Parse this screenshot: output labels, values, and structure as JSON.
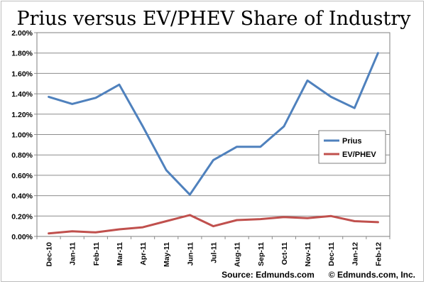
{
  "chart_data": {
    "type": "line",
    "title": "Prius versus EV/PHEV Share of Industry",
    "categories": [
      "Dec-10",
      "Jan-11",
      "Feb-11",
      "Mar-11",
      "Apr-11",
      "May-11",
      "Jun-11",
      "Jul-11",
      "Aug-11",
      "Sep-11",
      "Oct-11",
      "Nov-11",
      "Dec-11",
      "Jan-12",
      "Feb-12"
    ],
    "series": [
      {
        "name": "Prius",
        "color": "#4f81bd",
        "values": [
          1.37,
          1.3,
          1.36,
          1.49,
          1.08,
          0.65,
          0.41,
          0.75,
          0.88,
          0.88,
          1.08,
          1.53,
          1.37,
          1.26,
          1.8
        ]
      },
      {
        "name": "EV/PHEV",
        "color": "#c0504d",
        "values": [
          0.03,
          0.05,
          0.04,
          0.07,
          0.09,
          0.15,
          0.21,
          0.1,
          0.16,
          0.17,
          0.19,
          0.18,
          0.2,
          0.15,
          0.14
        ]
      }
    ],
    "ylim": [
      0,
      2.0
    ],
    "ytick_labels": [
      "0.00%",
      "0.20%",
      "0.40%",
      "0.60%",
      "0.80%",
      "1.00%",
      "1.20%",
      "1.40%",
      "1.60%",
      "1.80%",
      "2.00%"
    ],
    "grid": true,
    "legend_position": "right",
    "xlabel": "",
    "ylabel": "",
    "source": "Source: Edmunds.com      © Edmunds.com, Inc."
  }
}
